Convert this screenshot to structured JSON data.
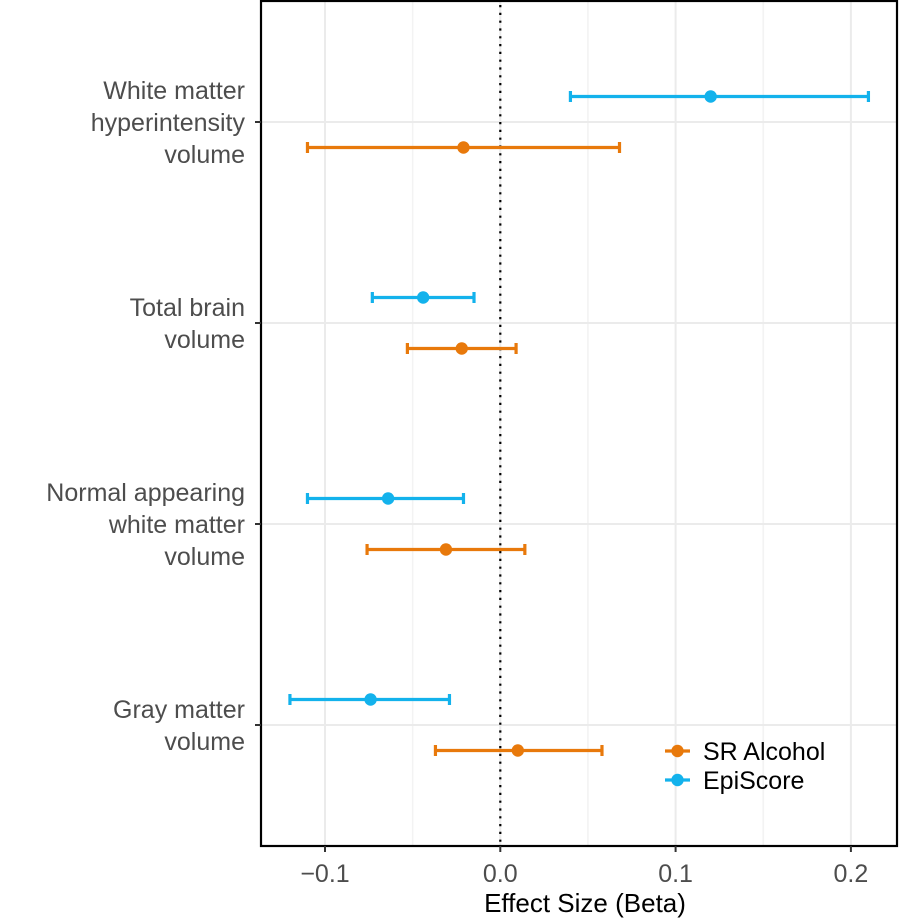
{
  "chart_data": {
    "type": "forest",
    "title": "",
    "xlabel": "Effect Size (Beta)",
    "ylabel": "",
    "xlim": [
      -0.137,
      0.226
    ],
    "x_ticks": [
      -0.1,
      0.0,
      0.1,
      0.2
    ],
    "x_tick_labels": [
      "−0.1",
      "0.0",
      "0.1",
      "0.2"
    ],
    "x_minor_ticks": [
      -0.05,
      0.05,
      0.15
    ],
    "grid": true,
    "reference_line": {
      "x": 0.0,
      "style": "dotted"
    },
    "categories": [
      {
        "id": "wmh",
        "label_lines": [
          "White matter",
          "hyperintensity",
          "volume"
        ]
      },
      {
        "id": "tbv",
        "label_lines": [
          "Total brain",
          "volume"
        ]
      },
      {
        "id": "nawm",
        "label_lines": [
          "Normal appearing",
          "white matter",
          "volume"
        ]
      },
      {
        "id": "gmv",
        "label_lines": [
          "Gray matter",
          "volume"
        ]
      }
    ],
    "series": [
      {
        "name": "SR Alcohol",
        "color": "#e8790b",
        "points": [
          {
            "category": "wmh",
            "estimate": -0.021,
            "lower": -0.11,
            "upper": 0.068
          },
          {
            "category": "tbv",
            "estimate": -0.022,
            "lower": -0.053,
            "upper": 0.009
          },
          {
            "category": "nawm",
            "estimate": -0.031,
            "lower": -0.076,
            "upper": 0.014
          },
          {
            "category": "gmv",
            "estimate": 0.01,
            "lower": -0.037,
            "upper": 0.058
          }
        ]
      },
      {
        "name": "EpiScore",
        "color": "#13b2ec",
        "points": [
          {
            "category": "wmh",
            "estimate": 0.12,
            "lower": 0.04,
            "upper": 0.21
          },
          {
            "category": "tbv",
            "estimate": -0.044,
            "lower": -0.073,
            "upper": -0.015
          },
          {
            "category": "nawm",
            "estimate": -0.064,
            "lower": -0.11,
            "upper": -0.021
          },
          {
            "category": "gmv",
            "estimate": -0.074,
            "lower": -0.12,
            "upper": -0.029
          }
        ]
      }
    ],
    "legend": {
      "position": "bottom-right",
      "entries": [
        "SR Alcohol",
        "EpiScore"
      ]
    }
  }
}
